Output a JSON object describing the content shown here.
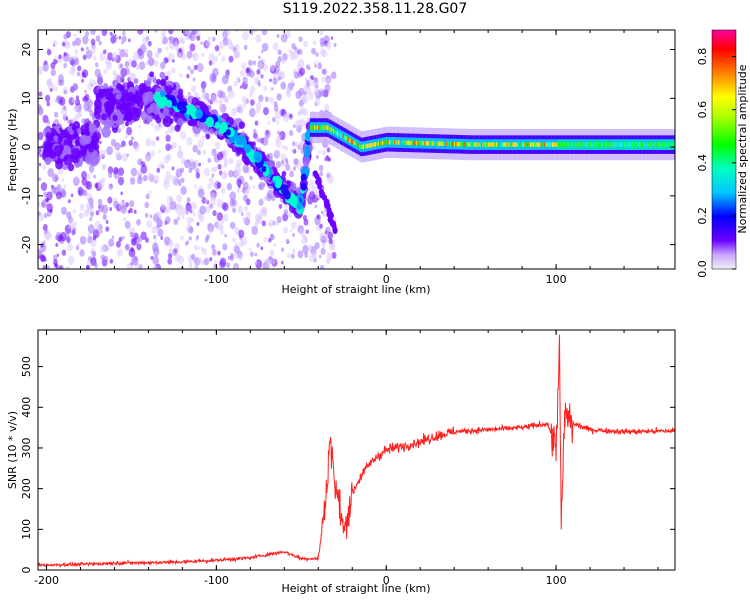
{
  "title": "S119.2022.358.11.28.G07",
  "chart_data": [
    {
      "type": "heatmap",
      "xlabel": "Height of straight line (km)",
      "ylabel": "Frequency (Hz)",
      "xlim": [
        -205,
        170
      ],
      "ylim": [
        -25,
        24
      ],
      "x_ticks": [
        -200,
        -100,
        0,
        100
      ],
      "y_ticks": [
        -20,
        -10,
        0,
        10,
        20
      ],
      "grid": false,
      "colorbar": {
        "label": "Normalized spectral amplitude",
        "range": [
          0.0,
          0.9
        ],
        "ticks": [
          0.0,
          0.2,
          0.4,
          0.6,
          0.8
        ],
        "colormap": "rainbow (violet→blue→cyan→green→yellow→orange→red→magenta)"
      },
      "ridge": [
        {
          "x": -170,
          "y": 8
        },
        {
          "x": -150,
          "y": 9
        },
        {
          "x": -130,
          "y": 10
        },
        {
          "x": -115,
          "y": 7
        },
        {
          "x": -100,
          "y": 5
        },
        {
          "x": -85,
          "y": 1
        },
        {
          "x": -70,
          "y": -5
        },
        {
          "x": -60,
          "y": -9
        },
        {
          "x": -50,
          "y": -12
        },
        {
          "x": -45,
          "y": 4
        },
        {
          "x": -35,
          "y": 4
        },
        {
          "x": -25,
          "y": 2
        },
        {
          "x": -15,
          "y": 0
        },
        {
          "x": 0,
          "y": 1
        },
        {
          "x": 50,
          "y": 0.5
        },
        {
          "x": 100,
          "y": 0.5
        },
        {
          "x": 170,
          "y": 0.5
        }
      ]
    },
    {
      "type": "line",
      "xlabel": "Height of straight line (km)",
      "ylabel": "SNR (10 * v/v)",
      "xlim": [
        -205,
        170
      ],
      "ylim": [
        0,
        590
      ],
      "x_ticks": [
        -200,
        -100,
        0,
        100
      ],
      "y_ticks": [
        0,
        100,
        200,
        300,
        400,
        500
      ],
      "grid": false,
      "series": [
        {
          "color": "#ff2020",
          "x": [
            -205,
            -180,
            -160,
            -140,
            -120,
            -100,
            -80,
            -70,
            -60,
            -50,
            -40,
            -35,
            -33,
            -30,
            -27,
            -25,
            -20,
            -15,
            -10,
            -5,
            0,
            10,
            20,
            30,
            40,
            60,
            80,
            95,
            100,
            102,
            103,
            105,
            110,
            120,
            140,
            170
          ],
          "y": [
            12,
            14,
            17,
            18,
            20,
            24,
            30,
            38,
            45,
            28,
            28,
            190,
            340,
            200,
            150,
            90,
            190,
            230,
            260,
            280,
            295,
            305,
            315,
            330,
            340,
            345,
            350,
            360,
            300,
            560,
            90,
            380,
            360,
            345,
            340,
            342
          ]
        }
      ]
    }
  ]
}
